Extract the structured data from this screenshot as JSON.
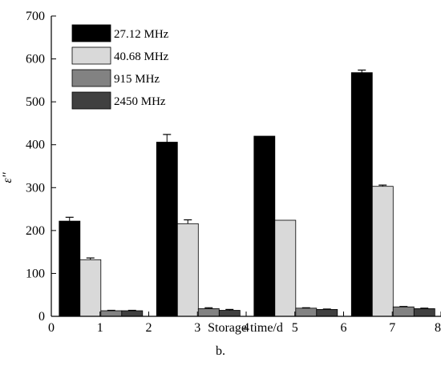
{
  "caption": "b.",
  "chart_data": {
    "type": "bar",
    "xlabel": "Storage time/d",
    "ylabel": "ε''",
    "xlim": [
      0,
      8
    ],
    "ylim": [
      0,
      700
    ],
    "x_ticks": [
      0,
      1,
      2,
      3,
      4,
      5,
      6,
      7,
      8
    ],
    "y_ticks": [
      0,
      100,
      200,
      300,
      400,
      500,
      600,
      700
    ],
    "grid": false,
    "legend_position": "top-left",
    "categories": [
      1,
      3,
      5,
      7
    ],
    "series": [
      {
        "name": "27.12 MHz",
        "color": "#000000",
        "values": [
          222,
          406,
          420,
          568
        ],
        "errors": [
          9,
          18,
          0,
          6
        ]
      },
      {
        "name": "40.68 MHz",
        "color": "#d9d9d9",
        "values": [
          132,
          216,
          224,
          303
        ],
        "errors": [
          4,
          9,
          0,
          3
        ]
      },
      {
        "name": "915 MHz",
        "color": "#828282",
        "values": [
          13,
          18,
          19,
          22
        ],
        "errors": [
          1,
          2,
          1,
          1
        ]
      },
      {
        "name": "2450 MHz",
        "color": "#404040",
        "values": [
          13,
          14,
          16,
          18
        ],
        "errors": [
          1,
          2,
          1,
          1
        ]
      }
    ]
  }
}
